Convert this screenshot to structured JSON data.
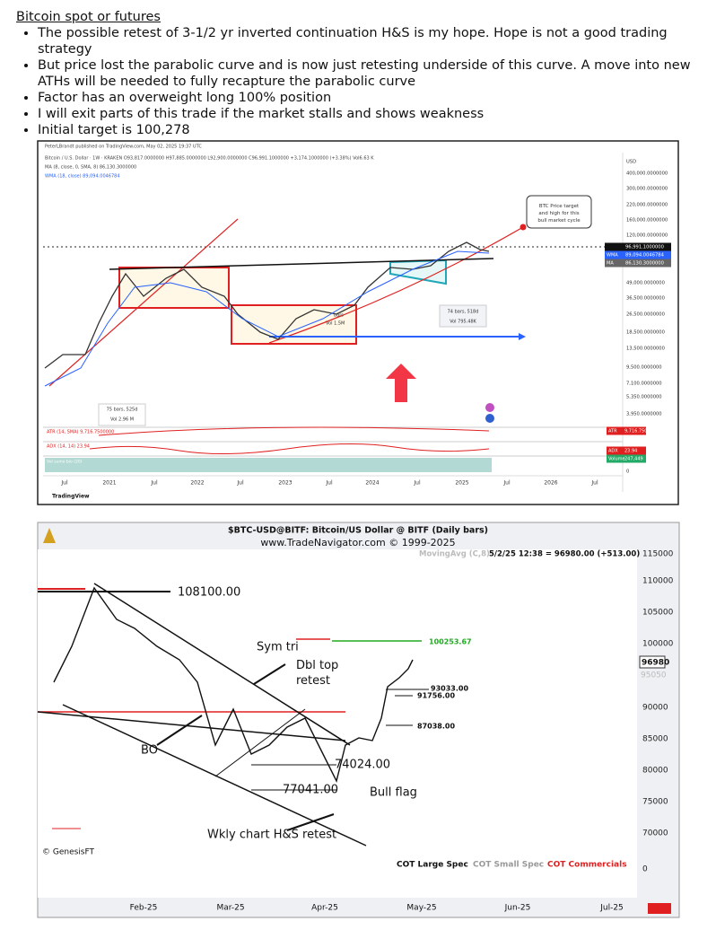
{
  "heading": "Bitcoin spot or futures",
  "bullets": [
    "The possible retest of 3-1/2 yr inverted continuation H&S is my hope. Hope is not a good trading strategy",
    "But price lost the parabolic curve and is now just retesting underside of this curve. A move into new ATHs will be needed to fully recapture the parabolic curve",
    "Factor has an overweight long 100% position",
    "I will exit parts of this trade if the market stalls and shows weakness",
    "Initial target is 100,278"
  ],
  "chart1": {
    "header": [
      "PeterLBrandt published on TradingView.com, May 02, 2025 19:37 UTC",
      "Bitcoin / U.S. Dollar · 1W · KRAKEN  O93,817.0000000 H97,885.0000000 L92,900.0000000 C96,991.1000000 +3,174.1000000 (+3.38%) Vol6.63 K",
      "MA (8, close, 0, SMA, 8)  86,130.3000000",
      "WMA (18, close)  89,094.0046784"
    ],
    "price_axis": [
      "USD",
      "400,000.0000000",
      "300,000.0000000",
      "220,000.0000000",
      "160,000.0000000",
      "120,000.0000000",
      "49,000.0000000",
      "36,500.0000000",
      "26,500.0000000",
      "18,500.0000000",
      "13,500.0000000",
      "9,500.0000000",
      "7,100.0000000",
      "5,350.0000000",
      "3,950.0000000",
      "0"
    ],
    "price_tags": [
      {
        "label": "",
        "value": "96,991.1000000"
      },
      {
        "label": "WMA",
        "value": "89,094.0046784"
      },
      {
        "label": "MA",
        "value": "86,130.3000000"
      }
    ],
    "time_axis": [
      "Jul",
      "2021",
      "Jul",
      "2022",
      "Jul",
      "2023",
      "Jul",
      "2024",
      "Jul",
      "2025",
      "Jul",
      "2026",
      "Jul"
    ],
    "callout": "BTC Price target and high for this bull market cycle",
    "measure_right": [
      "74 bars, 518d",
      "Vol 795.48K"
    ],
    "measure_left": [
      "75 bars, 525d",
      "Vol 2.96 M"
    ],
    "inner_box": [
      "bars",
      "Vol 1.5M"
    ],
    "indicators": [
      "ATR (14, SMA)  9,716.7500000",
      "ADX (14, 14)  23.94",
      "Vol sumo bio (20)"
    ],
    "indicator_tags": [
      {
        "label": "ATR",
        "value": "9,716.7500000"
      },
      {
        "label": "ADX",
        "value": "23.94"
      },
      {
        "label": "Volume",
        "value": "247,449"
      }
    ],
    "brand": "TradingView"
  },
  "chart2": {
    "title": "$BTC-USD@BITF:  Bitcoin/US Dollar @ BITF  (Daily bars)",
    "subtitle": "www.TradeNavigator.com © 1999-2025",
    "indicator": "MovingAvg (C,8)",
    "quote": "5/2/25 12:38 = 96980.00 (+513.00)",
    "price_axis": [
      "115000",
      "110000",
      "105000",
      "100000",
      "90000",
      "85000",
      "80000",
      "75000",
      "70000",
      "0"
    ],
    "last_price": "96980",
    "ma_price": "95050",
    "annotations": {
      "high": "108100.00",
      "sym_tri": "Sym tri",
      "dbl_top": "Dbl top retest",
      "bo": "BO",
      "low": "77041.00",
      "flag_low": "74024.00",
      "bull_flag": "Bull flag",
      "hs": "Wkly chart H&S retest",
      "target": "100253.67",
      "l1": "93033.00",
      "l2": "91756.00",
      "l3": "87038.00"
    },
    "copyright": "© GenesisFT",
    "cot": [
      "COT Large Spec",
      "COT Small Spec",
      "COT Commercials"
    ],
    "time_axis": [
      "Feb-25",
      "Mar-25",
      "Apr-25",
      "May-25",
      "Jun-25",
      "Jul-25"
    ]
  }
}
